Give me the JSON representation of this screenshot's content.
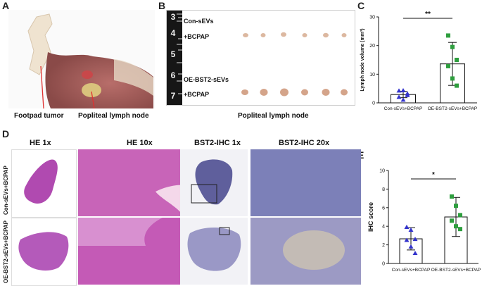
{
  "panels": {
    "a": "A",
    "b": "B",
    "c": "C",
    "d": "D",
    "e": "E"
  },
  "panel_a": {
    "label_left": "Footpad tumor",
    "label_right": "Popliteal lymph node"
  },
  "panel_b": {
    "row1_line1": "Con-sEVs",
    "row1_line2": "+BCPAP",
    "row2_line1": "OE-BST2-sEVs",
    "row2_line2": "+BCPAP",
    "ruler_numbers": [
      "3",
      "4",
      "5",
      "6",
      "7"
    ],
    "caption": "Popliteal lymph node"
  },
  "panel_d": {
    "col_headers": [
      "HE 1x",
      "HE 10x",
      "BST2-IHC 1x",
      "BST2-IHC 20x"
    ],
    "row_labels": [
      "Con-sEVs+BCPAP",
      "OE-BST2-sEVs+BCPAP"
    ]
  },
  "chart_data": [
    {
      "type": "bar",
      "categories": [
        "Con-sEVs+BCPAP",
        "OE-BST2-sEVs+BCPAP"
      ],
      "values": [
        2.9,
        13.6
      ],
      "errors": [
        1.1,
        7.5
      ],
      "points": [
        [
          4.2,
          4.3,
          3.2,
          2.0,
          1.0,
          2.6
        ],
        [
          23.5,
          19.5,
          15.0,
          12.8,
          8.5,
          6.0
        ]
      ],
      "point_colors": [
        "#3333cc",
        "#2e9e3e"
      ],
      "ylabel": "Lymph node volume (mm³)",
      "ylim": [
        0,
        30
      ],
      "yticks": [
        "0",
        "10",
        "20",
        "30"
      ],
      "significance": "**"
    },
    {
      "type": "bar",
      "categories": [
        "Con-sEVs+BCPAP",
        "OE-BST2-sEVs+BCPAP"
      ],
      "values": [
        2.65,
        5.0
      ],
      "errors": [
        1.2,
        2.1
      ],
      "points": [
        [
          3.9,
          3.6,
          2.6,
          2.5,
          1.8,
          1.1
        ],
        [
          7.2,
          6.2,
          5.2,
          4.6,
          4.0,
          3.7
        ]
      ],
      "point_colors": [
        "#3333cc",
        "#2e9e3e"
      ],
      "ylabel": "IHC score",
      "ylim": [
        0,
        10
      ],
      "yticks": [
        "0",
        "2",
        "4",
        "6",
        "8",
        "10"
      ],
      "significance": "*"
    }
  ]
}
